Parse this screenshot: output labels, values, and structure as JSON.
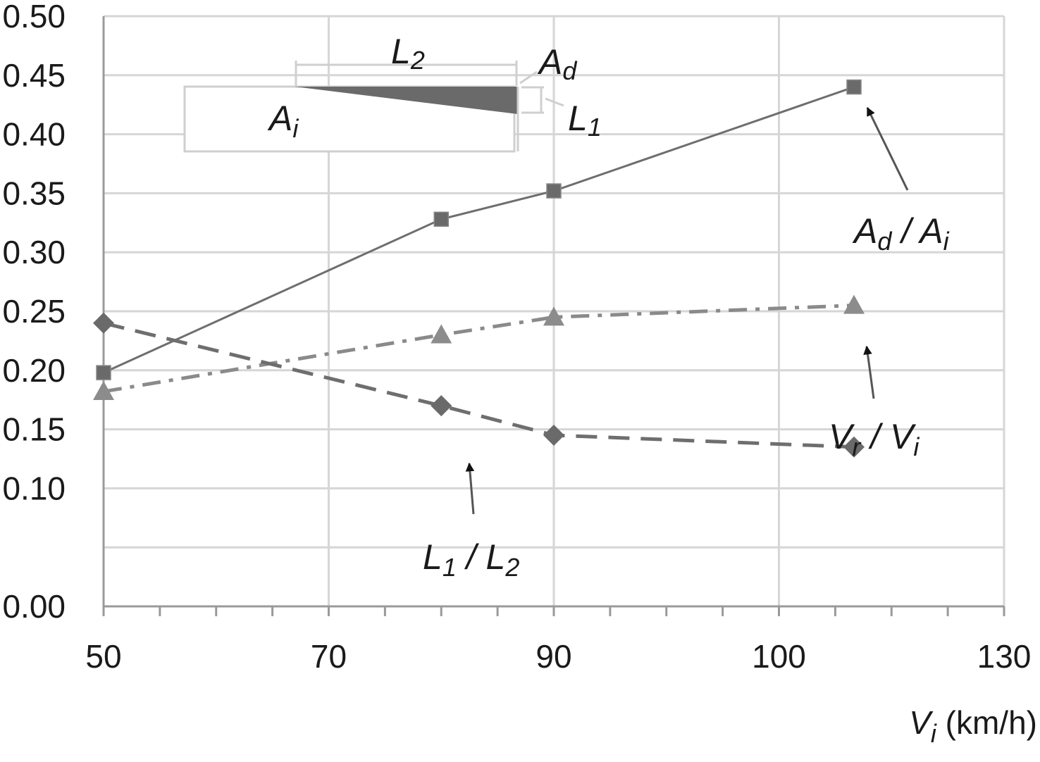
{
  "chart_data": {
    "type": "line",
    "x_tick_labels": [
      "50",
      "70",
      "90",
      "100",
      "130"
    ],
    "y_tick_labels": [
      "0.00",
      "0.10",
      "0.15",
      "0.20",
      "0.25",
      "0.30",
      "0.35",
      "0.40",
      "0.45",
      "0.50"
    ],
    "xlabel": {
      "main": "V",
      "sub": "i",
      "unit": " (km/h)"
    },
    "grid": true,
    "series": [
      {
        "label": {
          "a": "A",
          "a_sub": "d",
          "sep": " / ",
          "b": "A",
          "b_sub": "i"
        },
        "marker": "square",
        "dash": "solid",
        "color": "#6e6e6e",
        "x": [
          50,
          80,
          90,
          110
        ],
        "y": [
          0.198,
          0.328,
          0.352,
          0.44
        ]
      },
      {
        "label": {
          "a": "V",
          "a_sub": "r",
          "sep": " / ",
          "b": "V",
          "b_sub": "i"
        },
        "marker": "triangle",
        "dash": "dashdot",
        "color": "#8a8a8a",
        "x": [
          50,
          80,
          90,
          110
        ],
        "y": [
          0.182,
          0.23,
          0.245,
          0.255
        ]
      },
      {
        "label": {
          "a": "L",
          "a_sub": "1",
          "sep": " / ",
          "b": "L",
          "b_sub": "2"
        },
        "marker": "diamond",
        "dash": "dashed",
        "color": "#6e6e6e",
        "x": [
          50,
          80,
          90,
          110
        ],
        "y": [
          0.24,
          0.17,
          0.145,
          0.135
        ]
      }
    ],
    "inset": {
      "L2": {
        "main": "L",
        "sub": "2"
      },
      "Ad": {
        "main": "A",
        "sub": "d"
      },
      "Ai": {
        "main": "A",
        "sub": "i"
      },
      "L1": {
        "main": "L",
        "sub": "1"
      }
    }
  }
}
